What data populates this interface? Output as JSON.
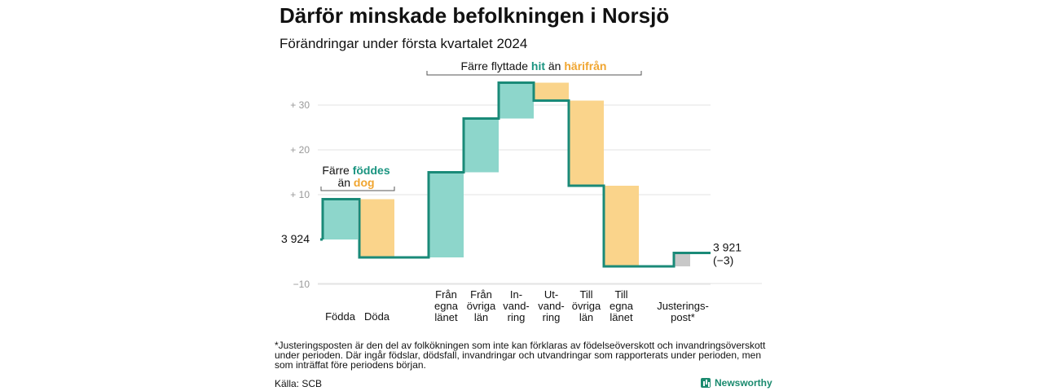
{
  "header": {
    "title": "Därför minskade befolkningen i Norsjö",
    "subtitle": "Förändringar under första kvartalet 2024"
  },
  "colors": {
    "increase": "#8dd6cb",
    "decrease": "#fad48b",
    "adjustment": "#c8c8c8",
    "line": "#1a8a78",
    "teal_text": "#1a9480",
    "orange_text": "#f0a530",
    "grid": "#e3e3e3"
  },
  "chart_data": {
    "type": "waterfall",
    "title": "Därför minskade befolkningen i Norsjö",
    "subtitle": "Förändringar under första kvartalet 2024",
    "start": {
      "label": "3 924",
      "value": 3924
    },
    "end": {
      "label_value": "3 921",
      "label_change": "(−3)",
      "value": 3921,
      "change": -3
    },
    "ylim": [
      -12,
      37
    ],
    "yticks": [
      {
        "value": 30,
        "label": "+  30"
      },
      {
        "value": 20,
        "label": "+  20"
      },
      {
        "value": 10,
        "label": "+  10"
      },
      {
        "value": -10,
        "label": "−10"
      }
    ],
    "grid": true,
    "steps": [
      {
        "lines": [
          "Födda"
        ],
        "change": 9,
        "kind": "increase"
      },
      {
        "lines": [
          "Döda"
        ],
        "change": -13,
        "kind": "decrease"
      },
      {
        "lines": [
          "Från",
          "egna",
          "länet"
        ],
        "change": 19,
        "kind": "increase"
      },
      {
        "lines": [
          "Från",
          "övriga",
          "län"
        ],
        "change": 12,
        "kind": "increase"
      },
      {
        "lines": [
          "In-",
          "vand-",
          "ring"
        ],
        "change": 8,
        "kind": "increase"
      },
      {
        "lines": [
          "Ut-",
          "vand-",
          "ring"
        ],
        "change": -4,
        "kind": "decrease"
      },
      {
        "lines": [
          "Till",
          "övriga",
          "län"
        ],
        "change": -19,
        "kind": "decrease"
      },
      {
        "lines": [
          "Till",
          "egna",
          "länet"
        ],
        "change": -18,
        "kind": "decrease"
      },
      {
        "lines": [
          "Justerings-",
          "post*"
        ],
        "change": 3,
        "kind": "adjustment"
      }
    ]
  },
  "annotations": {
    "births": {
      "line1_pre": "Färre ",
      "line1_highlight": "föddes",
      "line2_pre": "än ",
      "line2_highlight": "dog"
    },
    "migration": {
      "pre": "Färre flyttade ",
      "highlight1": "hit",
      "mid": " än ",
      "highlight2": "härifrån"
    }
  },
  "footer": {
    "footnote": "*Justeringsposten är den del av folkökningen som inte kan förklaras av födelseöverskott och invandringsöverskott under perioden. Där ingår födslar, dödsfall, invandringar och utvandringar som rapporterats under perioden, men som inträffat före periodens början.",
    "source": "Källa: SCB",
    "logo": "Newsworthy"
  }
}
